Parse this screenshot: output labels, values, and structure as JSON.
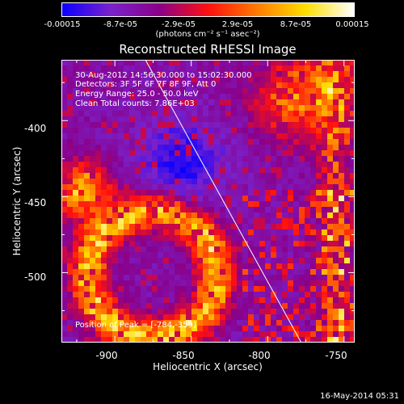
{
  "colorbar": {
    "tick_labels": [
      "-0.00015",
      "-8.7e-05",
      "-2.9e-05",
      "2.9e-05",
      "8.7e-05",
      "0.00015"
    ],
    "units": "(photons cm⁻² s⁻¹ asec⁻²)",
    "range": [
      -0.00015,
      0.00015
    ]
  },
  "info": {
    "time_range": "30-Aug-2012 14:56:30.000 to 15:02:30.000",
    "detectors": "Detectors: 3F 5F 6F 7F 8F 9F, Att 0",
    "energy_range": "Energy Range: 25.0 - 50.0 keV",
    "clean_counts": "Clean     Total counts: 7.86E+03",
    "peak_position": "Position of Peak = [-784,-359]"
  },
  "footer": {
    "timestamp": "16-May-2014 05:31"
  },
  "chart_data": {
    "type": "heatmap",
    "title": "Reconstructed RHESSI Image",
    "xlabel": "Heliocentric X (arcsec)",
    "ylabel": "Heliocentric Y (arcsec)",
    "xlim": [
      -935,
      -743
    ],
    "ylim": [
      -546,
      -360
    ],
    "x_ticks": [
      -900,
      -850,
      -800,
      -750
    ],
    "y_ticks": [
      -400,
      -450,
      -500
    ],
    "limb_line": [
      [
        -880,
        -360
      ],
      [
        -778,
        -546
      ]
    ],
    "colormap": "blue-purple-red-yellow-white",
    "colors": {
      "stops": [
        "#0a00ff",
        "#7a22cc",
        "#8a0088",
        "#ff1010",
        "#ff7a00",
        "#ffdf00",
        "#ffffff"
      ]
    }
  }
}
